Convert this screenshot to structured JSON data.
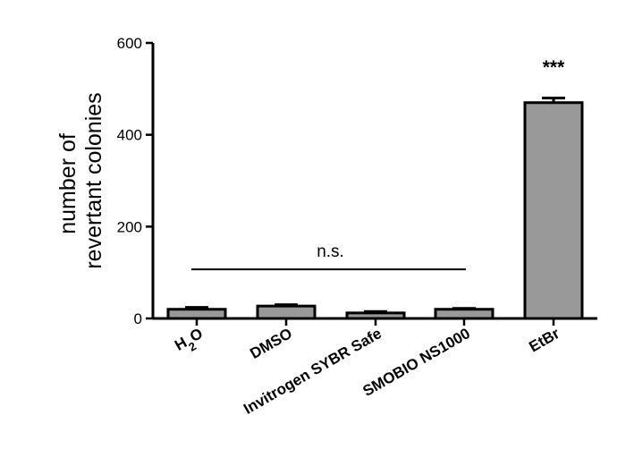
{
  "chart_data": {
    "type": "bar",
    "title": "",
    "xlabel": "",
    "ylabel_lines": [
      "number of",
      "revertant colonies"
    ],
    "ylim": [
      0,
      600
    ],
    "yticks": [
      "0",
      "200",
      "400",
      "600"
    ],
    "categories": [
      "H2O",
      "DMSO",
      "Invitrogen SYBR Safe",
      "SMOBIO NS1000",
      "EtBr"
    ],
    "values": [
      20,
      27,
      12,
      20,
      470
    ],
    "errors": [
      4,
      3,
      3,
      2,
      10
    ],
    "bar_color": "#999999",
    "annotations": {
      "ns_label": "n.s.",
      "ns_span": [
        "H2O",
        "SMOBIO NS1000"
      ],
      "ns_level": 107,
      "sig_label": "***",
      "sig_category": "EtBr"
    },
    "grid": false
  }
}
